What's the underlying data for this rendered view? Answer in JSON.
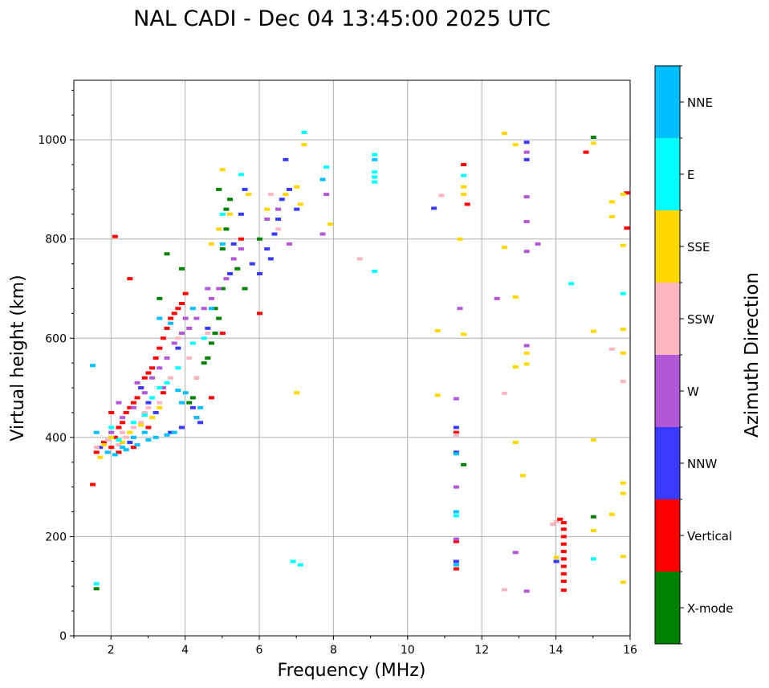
{
  "chart_data": {
    "type": "scatter",
    "title": "NAL CADI - Dec 04 13:45:00 2025 UTC",
    "xlabel": "Frequency (MHz)",
    "ylabel": "Virtual height (km)",
    "xlim": [
      1,
      16
    ],
    "ylim": [
      0,
      1120
    ],
    "xticks": [
      2,
      4,
      6,
      8,
      10,
      12,
      14,
      16
    ],
    "yticks": [
      0,
      200,
      400,
      600,
      800,
      1000
    ],
    "grid": true,
    "colorbar": {
      "label": "Azimuth Direction",
      "categories": [
        {
          "name": "X-mode",
          "color": "#008000"
        },
        {
          "name": "Vertical",
          "color": "#ff0000"
        },
        {
          "name": "NNW",
          "color": "#3a3aff"
        },
        {
          "name": "W",
          "color": "#b257d6"
        },
        {
          "name": "SSW",
          "color": "#ffb6c1"
        },
        {
          "name": "SSE",
          "color": "#ffd700"
        },
        {
          "name": "E",
          "color": "#00ffff"
        },
        {
          "name": "NNE",
          "color": "#00bfff"
        }
      ]
    },
    "segments": [
      {
        "dir": "X-mode",
        "color": "#008000",
        "points": [
          [
            1.6,
            95
          ],
          [
            3.3,
            680
          ],
          [
            3.5,
            770
          ],
          [
            3.9,
            740
          ],
          [
            4.1,
            470
          ],
          [
            4.3,
            520
          ],
          [
            4.6,
            560
          ],
          [
            4.7,
            590
          ],
          [
            4.8,
            610
          ],
          [
            4.9,
            640
          ],
          [
            5.0,
            700
          ],
          [
            5.0,
            780
          ],
          [
            5.1,
            820
          ],
          [
            5.1,
            860
          ],
          [
            4.9,
            900
          ],
          [
            5.4,
            740
          ],
          [
            5.6,
            700
          ],
          [
            6.0,
            800
          ],
          [
            15.0,
            1005
          ],
          [
            15.0,
            240
          ],
          [
            11.5,
            345
          ],
          [
            4.2,
            480
          ],
          [
            4.5,
            550
          ],
          [
            4.8,
            660
          ],
          [
            5.2,
            880
          ]
        ]
      },
      {
        "dir": "Vertical",
        "color": "#ff0000",
        "points": [
          [
            1.5,
            305
          ],
          [
            1.6,
            370
          ],
          [
            1.8,
            390
          ],
          [
            2.0,
            380
          ],
          [
            2.1,
            400
          ],
          [
            2.2,
            420
          ],
          [
            2.3,
            430
          ],
          [
            2.4,
            450
          ],
          [
            2.5,
            460
          ],
          [
            2.6,
            470
          ],
          [
            2.7,
            480
          ],
          [
            2.8,
            500
          ],
          [
            2.9,
            520
          ],
          [
            3.0,
            530
          ],
          [
            3.1,
            540
          ],
          [
            3.2,
            560
          ],
          [
            3.3,
            580
          ],
          [
            3.4,
            600
          ],
          [
            3.5,
            620
          ],
          [
            3.6,
            640
          ],
          [
            3.7,
            650
          ],
          [
            3.8,
            660
          ],
          [
            3.9,
            670
          ],
          [
            4.0,
            690
          ],
          [
            2.1,
            805
          ],
          [
            2.5,
            720
          ],
          [
            4.3,
            440
          ],
          [
            4.7,
            480
          ],
          [
            5.0,
            610
          ],
          [
            5.5,
            800
          ],
          [
            6.0,
            650
          ],
          [
            11.3,
            410
          ],
          [
            11.3,
            135
          ],
          [
            11.3,
            190
          ],
          [
            11.5,
            950
          ],
          [
            11.6,
            870
          ],
          [
            14.8,
            975
          ],
          [
            15.9,
            822
          ],
          [
            15.9,
            893
          ],
          [
            3.0,
            420
          ],
          [
            2.6,
            380
          ],
          [
            3.4,
            490
          ],
          [
            2.2,
            370
          ],
          [
            2.0,
            450
          ]
        ]
      },
      {
        "dir": "NNW",
        "color": "#3a3aff",
        "points": [
          [
            1.7,
            380
          ],
          [
            2.5,
            390
          ],
          [
            3.2,
            450
          ],
          [
            3.6,
            410
          ],
          [
            3.9,
            420
          ],
          [
            4.2,
            460
          ],
          [
            4.6,
            620
          ],
          [
            5.2,
            730
          ],
          [
            5.3,
            790
          ],
          [
            5.5,
            850
          ],
          [
            5.6,
            900
          ],
          [
            6.0,
            730
          ],
          [
            6.2,
            780
          ],
          [
            6.4,
            810
          ],
          [
            6.5,
            840
          ],
          [
            6.6,
            880
          ],
          [
            6.7,
            960
          ],
          [
            6.8,
            900
          ],
          [
            7.0,
            860
          ],
          [
            10.7,
            862
          ],
          [
            11.3,
            420
          ],
          [
            11.3,
            370
          ],
          [
            11.3,
            150
          ],
          [
            13.2,
            995
          ],
          [
            13.2,
            960
          ],
          [
            14.0,
            150
          ],
          [
            2.8,
            500
          ],
          [
            3.0,
            470
          ],
          [
            3.8,
            580
          ],
          [
            4.4,
            430
          ],
          [
            5.8,
            750
          ],
          [
            6.3,
            760
          ]
        ]
      },
      {
        "dir": "W",
        "color": "#b257d6",
        "points": [
          [
            2.0,
            410
          ],
          [
            2.3,
            440
          ],
          [
            2.6,
            460
          ],
          [
            2.9,
            490
          ],
          [
            3.1,
            520
          ],
          [
            3.3,
            540
          ],
          [
            3.5,
            560
          ],
          [
            3.7,
            590
          ],
          [
            3.9,
            610
          ],
          [
            4.1,
            620
          ],
          [
            4.3,
            640
          ],
          [
            4.5,
            660
          ],
          [
            4.7,
            680
          ],
          [
            4.9,
            700
          ],
          [
            5.1,
            720
          ],
          [
            5.3,
            760
          ],
          [
            5.5,
            780
          ],
          [
            6.2,
            840
          ],
          [
            6.5,
            860
          ],
          [
            6.8,
            790
          ],
          [
            7.7,
            810
          ],
          [
            7.8,
            890
          ],
          [
            11.3,
            478
          ],
          [
            11.3,
            300
          ],
          [
            11.3,
            195
          ],
          [
            11.4,
            660
          ],
          [
            12.4,
            680
          ],
          [
            12.9,
            168
          ],
          [
            13.2,
            975
          ],
          [
            13.2,
            885
          ],
          [
            13.2,
            835
          ],
          [
            13.2,
            775
          ],
          [
            13.2,
            585
          ],
          [
            13.2,
            90
          ],
          [
            13.5,
            790
          ],
          [
            2.2,
            470
          ],
          [
            2.7,
            510
          ],
          [
            3.4,
            500
          ],
          [
            4.0,
            640
          ],
          [
            4.6,
            700
          ]
        ]
      },
      {
        "dir": "SSW",
        "color": "#ffb6c1",
        "points": [
          [
            1.6,
            380
          ],
          [
            1.9,
            395
          ],
          [
            2.2,
            385
          ],
          [
            2.4,
            400
          ],
          [
            2.6,
            420
          ],
          [
            2.8,
            430
          ],
          [
            3.0,
            460
          ],
          [
            3.3,
            470
          ],
          [
            3.6,
            520
          ],
          [
            4.1,
            560
          ],
          [
            4.3,
            520
          ],
          [
            4.6,
            610
          ],
          [
            6.3,
            890
          ],
          [
            6.5,
            820
          ],
          [
            8.7,
            760
          ],
          [
            10.9,
            888
          ],
          [
            11.3,
            405
          ],
          [
            12.6,
            489
          ],
          [
            12.6,
            93
          ],
          [
            13.9,
            225
          ],
          [
            14.0,
            230
          ],
          [
            15.5,
            578
          ],
          [
            15.8,
            513
          ],
          [
            2.3,
            410
          ],
          [
            2.9,
            450
          ],
          [
            3.8,
            600
          ]
        ]
      },
      {
        "dir": "SSE",
        "color": "#ffd700",
        "points": [
          [
            1.7,
            360
          ],
          [
            1.8,
            385
          ],
          [
            2.0,
            400
          ],
          [
            2.3,
            390
          ],
          [
            2.5,
            410
          ],
          [
            2.8,
            425
          ],
          [
            3.1,
            440
          ],
          [
            3.3,
            460
          ],
          [
            4.7,
            790
          ],
          [
            4.9,
            820
          ],
          [
            5.0,
            940
          ],
          [
            5.2,
            850
          ],
          [
            5.7,
            890
          ],
          [
            6.2,
            860
          ],
          [
            6.7,
            890
          ],
          [
            7.0,
            905
          ],
          [
            7.2,
            990
          ],
          [
            7.1,
            870
          ],
          [
            7.0,
            490
          ],
          [
            7.9,
            830
          ],
          [
            10.8,
            615
          ],
          [
            10.8,
            485
          ],
          [
            11.4,
            800
          ],
          [
            11.5,
            905
          ],
          [
            11.5,
            890
          ],
          [
            11.5,
            608
          ],
          [
            12.6,
            1013
          ],
          [
            12.6,
            783
          ],
          [
            12.9,
            990
          ],
          [
            12.9,
            683
          ],
          [
            12.9,
            542
          ],
          [
            12.9,
            390
          ],
          [
            13.1,
            323
          ],
          [
            13.2,
            570
          ],
          [
            13.2,
            548
          ],
          [
            14.0,
            158
          ],
          [
            15.0,
            993
          ],
          [
            15.0,
            614
          ],
          [
            15.0,
            395
          ],
          [
            15.0,
            212
          ],
          [
            15.5,
            875
          ],
          [
            15.5,
            845
          ],
          [
            15.5,
            245
          ],
          [
            15.8,
            787
          ],
          [
            15.8,
            618
          ],
          [
            15.8,
            570
          ],
          [
            15.8,
            308
          ],
          [
            15.8,
            287
          ],
          [
            15.8,
            160
          ],
          [
            15.8,
            108
          ],
          [
            15.8,
            890
          ]
        ]
      },
      {
        "dir": "E",
        "color": "#00ffff",
        "points": [
          [
            1.6,
            105
          ],
          [
            2.2,
            395
          ],
          [
            2.6,
            430
          ],
          [
            2.9,
            445
          ],
          [
            3.1,
            480
          ],
          [
            3.5,
            510
          ],
          [
            3.8,
            540
          ],
          [
            4.2,
            590
          ],
          [
            5.0,
            850
          ],
          [
            5.5,
            930
          ],
          [
            6.9,
            150
          ],
          [
            7.1,
            143
          ],
          [
            7.2,
            1015
          ],
          [
            7.8,
            945
          ],
          [
            9.1,
            970
          ],
          [
            9.1,
            935
          ],
          [
            9.1,
            925
          ],
          [
            9.1,
            915
          ],
          [
            9.1,
            735
          ],
          [
            11.5,
            928
          ],
          [
            11.3,
            242
          ],
          [
            14.4,
            710
          ],
          [
            15.0,
            155
          ],
          [
            15.8,
            690
          ],
          [
            2.0,
            420
          ],
          [
            3.3,
            500
          ],
          [
            4.5,
            600
          ]
        ]
      },
      {
        "dir": "NNE",
        "color": "#00bfff",
        "points": [
          [
            1.5,
            545
          ],
          [
            1.6,
            410
          ],
          [
            1.9,
            370
          ],
          [
            2.1,
            365
          ],
          [
            2.4,
            375
          ],
          [
            2.7,
            385
          ],
          [
            3.0,
            395
          ],
          [
            3.2,
            400
          ],
          [
            3.5,
            405
          ],
          [
            3.7,
            410
          ],
          [
            3.8,
            495
          ],
          [
            4.0,
            490
          ],
          [
            4.2,
            660
          ],
          [
            4.3,
            440
          ],
          [
            4.4,
            460
          ],
          [
            4.7,
            660
          ],
          [
            5.0,
            790
          ],
          [
            7.7,
            920
          ],
          [
            9.1,
            960
          ],
          [
            11.3,
            367
          ],
          [
            11.3,
            250
          ],
          [
            11.3,
            143
          ],
          [
            2.3,
            380
          ],
          [
            2.6,
            400
          ],
          [
            2.9,
            410
          ],
          [
            3.3,
            640
          ],
          [
            3.6,
            630
          ],
          [
            3.9,
            470
          ]
        ]
      },
      {
        "dir": "Vertical",
        "color": "#ff0000",
        "points": [
          [
            14.2,
            215
          ],
          [
            14.2,
            200
          ],
          [
            14.2,
            185
          ],
          [
            14.2,
            170
          ],
          [
            14.2,
            155
          ],
          [
            14.2,
            140
          ],
          [
            14.2,
            125
          ],
          [
            14.2,
            110
          ],
          [
            14.2,
            92
          ],
          [
            14.1,
            235
          ],
          [
            14.2,
            228
          ]
        ]
      }
    ]
  }
}
